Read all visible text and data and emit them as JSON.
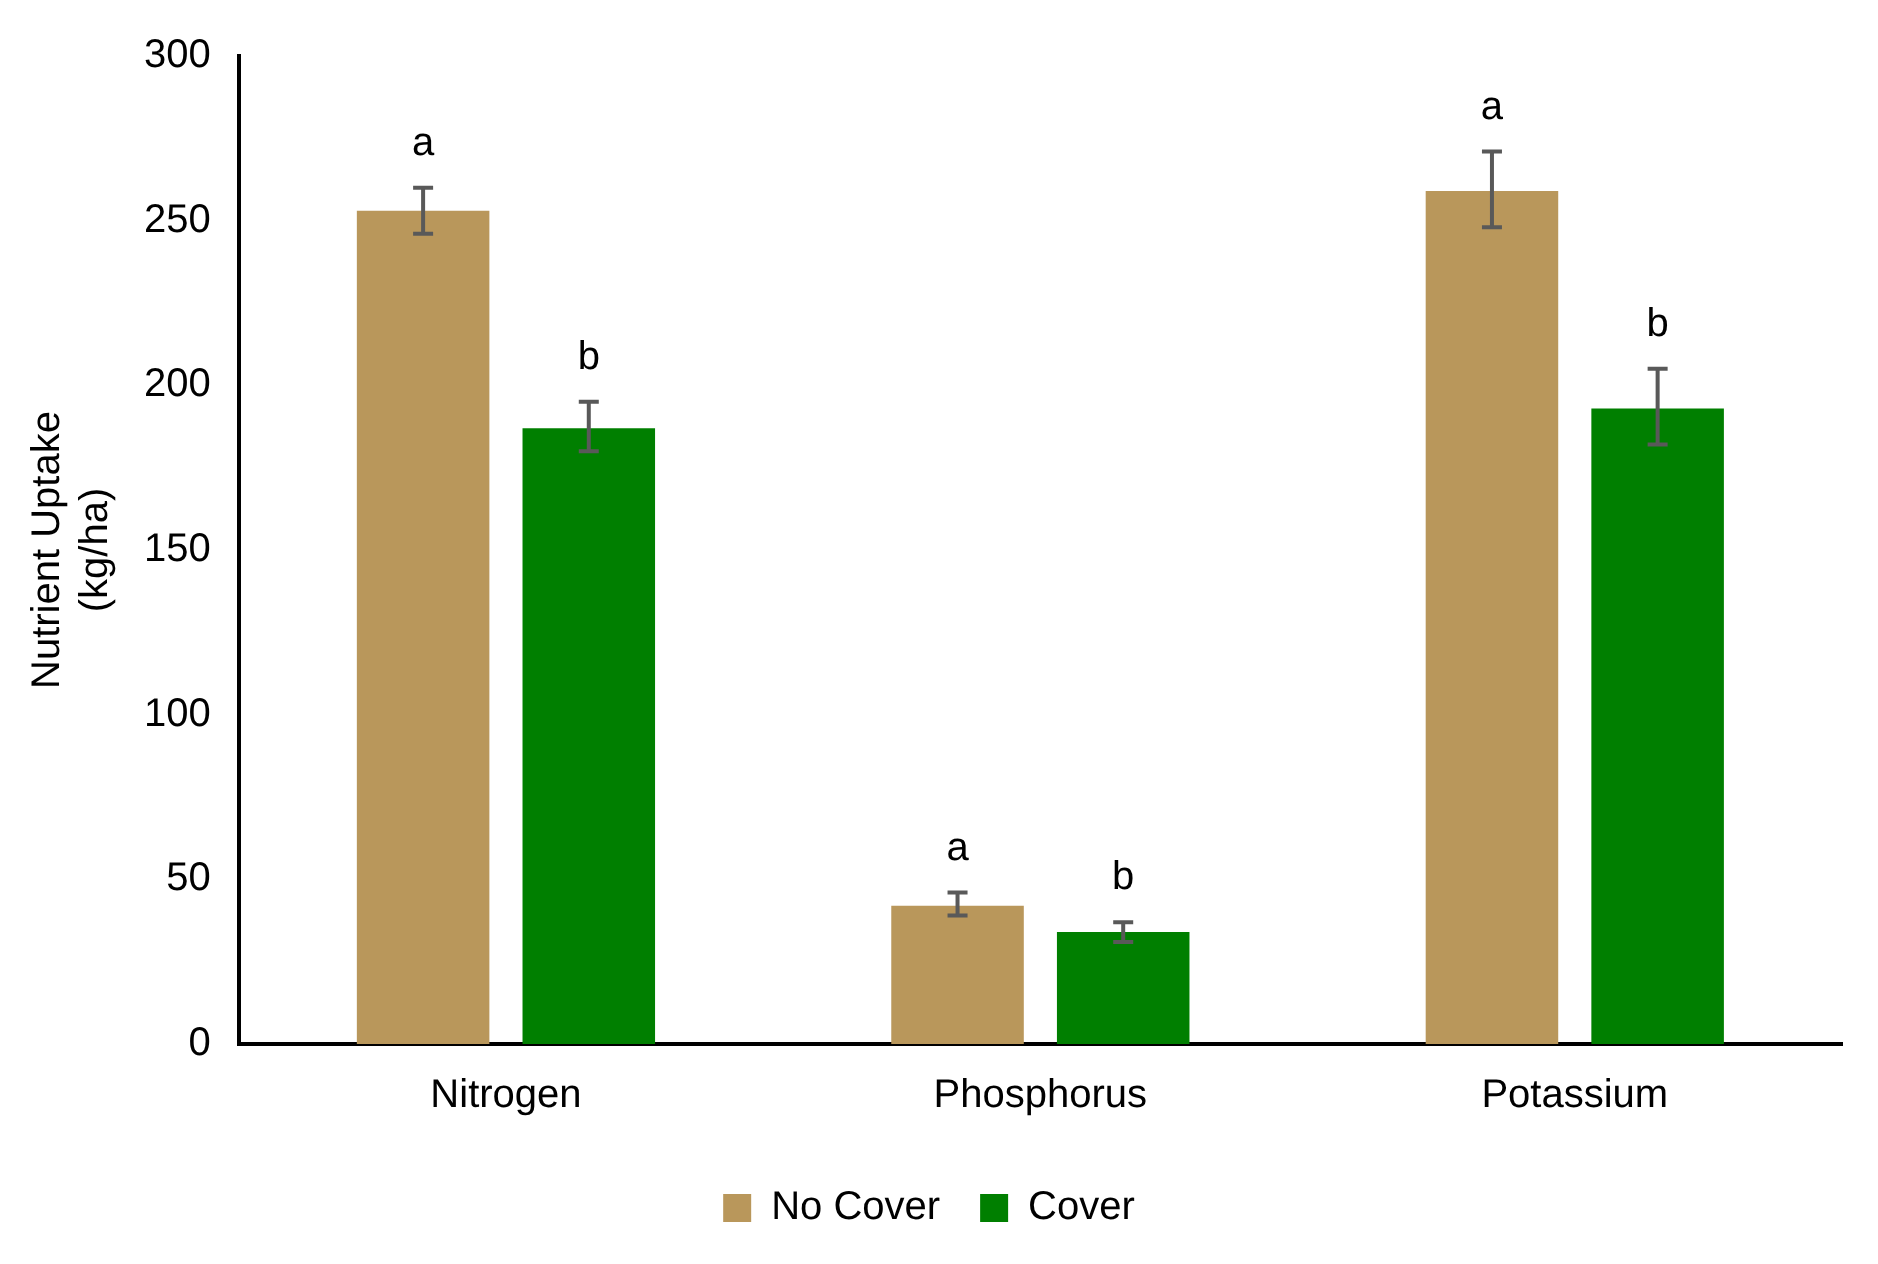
{
  "chart_data": {
    "type": "bar",
    "ylabel": "Nutrient Uptake\n(kg/ha)",
    "categories": [
      "Nitrogen",
      "Phosphorus",
      "Potassium"
    ],
    "series": [
      {
        "name": "No Cover",
        "color": "#b9975b",
        "values": [
          253,
          42,
          259
        ],
        "errors": [
          [
            246,
            260
          ],
          [
            39,
            46
          ],
          [
            248,
            271
          ]
        ]
      },
      {
        "name": "Cover",
        "color": "#007f00",
        "values": [
          187,
          34,
          193
        ],
        "errors": [
          [
            180,
            195
          ],
          [
            31,
            37
          ],
          [
            182,
            205
          ]
        ]
      }
    ],
    "ylim": [
      0,
      300
    ],
    "yticks": [
      0,
      50,
      100,
      150,
      200,
      250,
      300
    ],
    "grid": false,
    "legend": "bottom",
    "annotations": [
      "a",
      "b",
      "a",
      "b",
      "a",
      "b"
    ]
  }
}
